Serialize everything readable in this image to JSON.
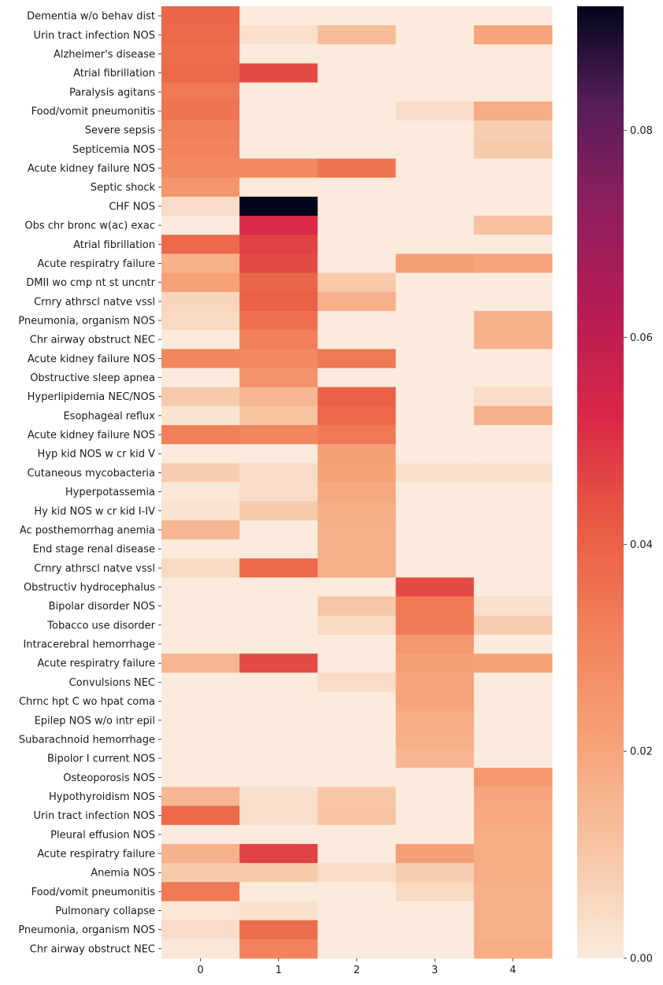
{
  "chart_data": {
    "type": "heatmap",
    "columns": [
      "0",
      "1",
      "2",
      "3",
      "4"
    ],
    "rows": [
      "Dementia w/o behav dist",
      "Urin tract infection NOS",
      "Alzheimer's disease",
      "Atrial fibrillation",
      "Paralysis agitans",
      "Food/vomit pneumonitis",
      "Severe sepsis",
      "Septicemia NOS",
      "Acute kidney failure NOS",
      "Septic shock",
      "CHF NOS",
      "Obs chr bronc w(ac) exac",
      "Atrial fibrillation",
      "Acute respiratry failure",
      "DMII wo cmp nt st uncntr",
      "Crnry athrscl natve vssl",
      "Pneumonia, organism NOS",
      "Chr airway obstruct NEC",
      "Acute kidney failure NOS",
      "Obstructive sleep apnea",
      "Hyperlipidemia NEC/NOS",
      "Esophageal reflux",
      "Acute kidney failure NOS",
      "Hyp kid NOS w cr kid V",
      "Cutaneous mycobacteria",
      "Hyperpotassemia",
      "Hy kid NOS w cr kid I-IV",
      "Ac posthemorrhag anemia",
      "End stage renal disease",
      "Crnry athrscl natve vssl",
      "Obstructiv hydrocephalus",
      "Bipolar disorder NOS",
      "Tobacco use disorder",
      "Intracerebral hemorrhage",
      "Acute respiratry failure",
      "Convulsions NEC",
      "Chrnc hpt C wo hpat coma",
      "Epilep NOS w/o intr epil",
      "Subarachnoid hemorrhage",
      "Bipolor I current NOS",
      "Osteoporosis NOS",
      "Hypothyroidism NOS",
      "Urin tract infection NOS",
      "Pleural effusion NOS",
      "Acute respiratry failure",
      "Anemia NOS",
      "Food/vomit pneumonitis",
      "Pulmonary collapse",
      "Pneumonia, organism NOS",
      "Chr airway obstruct NEC"
    ],
    "values": [
      [
        0.039,
        0.0,
        0.0,
        0.0,
        0.0
      ],
      [
        0.038,
        0.003,
        0.013,
        0.0,
        0.02
      ],
      [
        0.037,
        0.0,
        0.0,
        0.0,
        0.0
      ],
      [
        0.038,
        0.045,
        0.0,
        0.0,
        0.0
      ],
      [
        0.034,
        0.0,
        0.0,
        0.0,
        0.0
      ],
      [
        0.035,
        0.0,
        0.0,
        0.004,
        0.018
      ],
      [
        0.032,
        0.0,
        0.0,
        0.0,
        0.008
      ],
      [
        0.031,
        0.0,
        0.0,
        0.0,
        0.009
      ],
      [
        0.029,
        0.029,
        0.035,
        0.0,
        0.0
      ],
      [
        0.025,
        0.0,
        0.0,
        0.0,
        0.0
      ],
      [
        0.004,
        0.092,
        0.0,
        0.0,
        0.0
      ],
      [
        0.0,
        0.052,
        0.0,
        0.0,
        0.012
      ],
      [
        0.038,
        0.047,
        0.0,
        0.0,
        0.0
      ],
      [
        0.016,
        0.045,
        0.0,
        0.022,
        0.02
      ],
      [
        0.021,
        0.039,
        0.009,
        0.0,
        0.0
      ],
      [
        0.006,
        0.04,
        0.017,
        0.0,
        0.0
      ],
      [
        0.005,
        0.036,
        0.0,
        0.0,
        0.016
      ],
      [
        0.0,
        0.032,
        0.0,
        0.0,
        0.016
      ],
      [
        0.03,
        0.029,
        0.034,
        0.0,
        0.0
      ],
      [
        0.0,
        0.026,
        0.0,
        0.0,
        0.0
      ],
      [
        0.009,
        0.015,
        0.04,
        0.0,
        0.004
      ],
      [
        0.002,
        0.011,
        0.038,
        0.0,
        0.016
      ],
      [
        0.032,
        0.03,
        0.034,
        0.0,
        0.0
      ],
      [
        0.0,
        0.0,
        0.022,
        0.0,
        0.0
      ],
      [
        0.008,
        0.004,
        0.021,
        0.003,
        0.003
      ],
      [
        0.001,
        0.004,
        0.019,
        0.0,
        0.0
      ],
      [
        0.002,
        0.009,
        0.018,
        0.0,
        0.0
      ],
      [
        0.015,
        0.0,
        0.017,
        0.0,
        0.0
      ],
      [
        0.0,
        0.0,
        0.017,
        0.0,
        0.0
      ],
      [
        0.005,
        0.038,
        0.017,
        0.0,
        0.0
      ],
      [
        0.0,
        0.0,
        0.0,
        0.045,
        0.0
      ],
      [
        0.0,
        0.0,
        0.01,
        0.034,
        0.003
      ],
      [
        0.0,
        0.0,
        0.005,
        0.034,
        0.008
      ],
      [
        0.0,
        0.0,
        0.0,
        0.024,
        0.0
      ],
      [
        0.015,
        0.045,
        0.0,
        0.022,
        0.021
      ],
      [
        0.0,
        0.0,
        0.004,
        0.02,
        0.0
      ],
      [
        0.0,
        0.0,
        0.0,
        0.02,
        0.0
      ],
      [
        0.0,
        0.0,
        0.0,
        0.018,
        0.0
      ],
      [
        0.0,
        0.0,
        0.0,
        0.017,
        0.0
      ],
      [
        0.0,
        0.0,
        0.0,
        0.015,
        0.0
      ],
      [
        0.0,
        0.0,
        0.0,
        0.0,
        0.024
      ],
      [
        0.015,
        0.003,
        0.01,
        0.0,
        0.02
      ],
      [
        0.038,
        0.003,
        0.011,
        0.0,
        0.019
      ],
      [
        0.0,
        0.0,
        0.0,
        0.0,
        0.018
      ],
      [
        0.016,
        0.047,
        0.0,
        0.022,
        0.018
      ],
      [
        0.009,
        0.009,
        0.004,
        0.008,
        0.018
      ],
      [
        0.034,
        0.0,
        0.0,
        0.005,
        0.017
      ],
      [
        0.001,
        0.003,
        0.0,
        0.0,
        0.017
      ],
      [
        0.004,
        0.037,
        0.0,
        0.0,
        0.017
      ],
      [
        0.001,
        0.031,
        0.0,
        0.0,
        0.018
      ]
    ],
    "colorscale": "rocket_r",
    "vmin": 0.0,
    "vmax": 0.092,
    "colorbar_ticks": [
      "0.00",
      "0.02",
      "0.04",
      "0.06",
      "0.08"
    ],
    "colorbar_tick_values": [
      0.0,
      0.02,
      0.04,
      0.06,
      0.08
    ],
    "colorbar_stops": [
      [
        0.0,
        "#faebdd"
      ],
      [
        0.1,
        "#f7c9aa"
      ],
      [
        0.22,
        "#f6a47b"
      ],
      [
        0.35,
        "#f17f59"
      ],
      [
        0.46,
        "#e85843"
      ],
      [
        0.57,
        "#d92847"
      ],
      [
        0.68,
        "#b71c55"
      ],
      [
        0.8,
        "#8a1f5e"
      ],
      [
        0.9,
        "#531e59"
      ],
      [
        1.0,
        "#03051a"
      ]
    ]
  }
}
